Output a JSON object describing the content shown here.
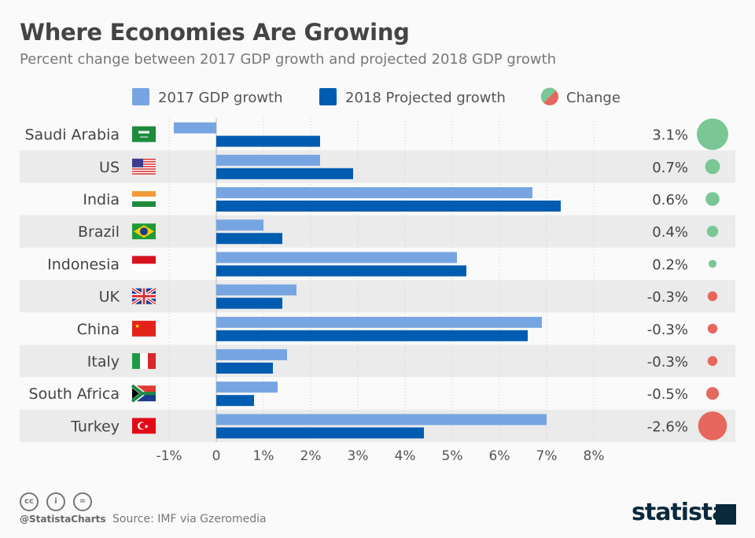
{
  "header": {
    "title": "Where Economies Are Growing",
    "subtitle": "Percent change between 2017 GDP growth and projected 2018 GDP growth"
  },
  "chart_data": {
    "type": "bar",
    "orientation": "horizontal",
    "title": "Where Economies Are Growing",
    "subtitle": "Percent change between 2017 GDP growth and projected 2018 GDP growth",
    "categories": [
      "Saudi Arabia",
      "US",
      "India",
      "Brazil",
      "Indonesia",
      "UK",
      "China",
      "Italy",
      "South Africa",
      "Turkey"
    ],
    "flags": [
      "saudi-arabia-flag-icon",
      "us-flag-icon",
      "india-flag-icon",
      "brazil-flag-icon",
      "indonesia-flag-icon",
      "uk-flag-icon",
      "china-flag-icon",
      "italy-flag-icon",
      "south-africa-flag-icon",
      "turkey-flag-icon"
    ],
    "series": [
      {
        "name": "2017 GDP growth",
        "color": "#77a5e2",
        "values": [
          -0.9,
          2.2,
          6.7,
          1.0,
          5.1,
          1.7,
          6.9,
          1.5,
          1.3,
          7.0
        ]
      },
      {
        "name": "2018 Projected growth",
        "color": "#005cb0",
        "values": [
          2.2,
          2.9,
          7.3,
          1.4,
          5.3,
          1.4,
          6.6,
          1.2,
          0.8,
          4.4
        ]
      }
    ],
    "change": {
      "name": "Change",
      "labels": [
        "3.1%",
        "0.7%",
        "0.6%",
        "0.4%",
        "0.2%",
        "-0.3%",
        "-0.3%",
        "-0.3%",
        "-0.5%",
        "-2.6%"
      ],
      "values": [
        3.1,
        0.7,
        0.6,
        0.4,
        0.2,
        -0.3,
        -0.3,
        -0.3,
        -0.5,
        -2.6
      ],
      "positive_color": "#7ac795",
      "negative_color": "#e5675d"
    },
    "xlim": [
      -1,
      8
    ],
    "xticks": [
      "-1%",
      "0",
      "1%",
      "2%",
      "3%",
      "4%",
      "5%",
      "6%",
      "7%",
      "8%"
    ],
    "grid": true,
    "legend": "top"
  },
  "footer": {
    "handle": "@StatistaCharts",
    "source": "Source: IMF via Gzeromedia",
    "logo": "statista",
    "cc_icons": [
      "cc",
      "i",
      "="
    ]
  }
}
